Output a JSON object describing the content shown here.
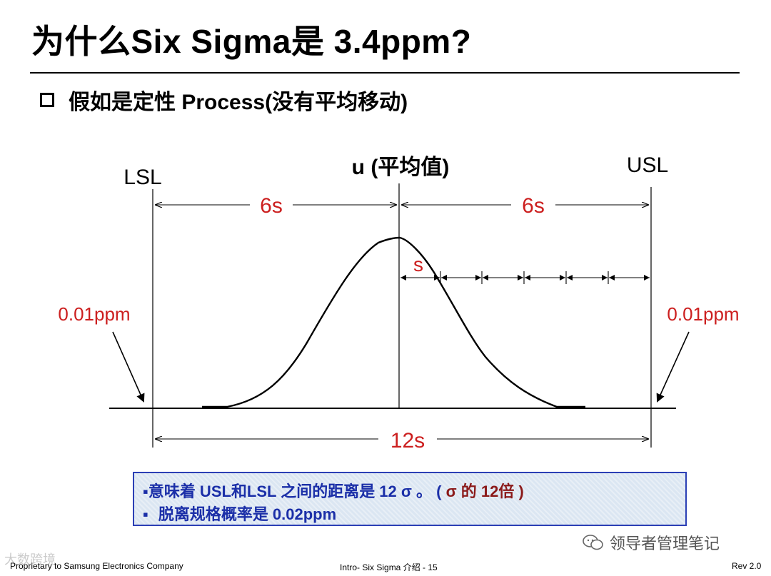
{
  "title": "为什么Six Sigma是 3.4ppm?",
  "subtitle": "假如是定性 Process(没有平均移动)",
  "diagram": {
    "lsl_label": "LSL",
    "usl_label": "USL",
    "mean_label": "u (平均值)",
    "left_span_label": "6s",
    "right_span_label": "6s",
    "sigma_label": "s",
    "total_span_label": "12s",
    "left_tail_label": "0.01ppm",
    "right_tail_label": "0.01ppm",
    "accent_color": "#cc1f1f"
  },
  "info_box": {
    "line1_prefix": "意味着 USL和LSL 之间的距离是 12 σ 。 (",
    "line1_sigma": " σ 的 12倍 )",
    "line2": "脱离规格概率是 0.02ppm"
  },
  "footer": {
    "left": "Proprietary to Samsung Electronics Company",
    "center": "Intro- Six Sigma 介绍 - 15",
    "right": "Rev 2.0"
  },
  "wechat_label": "领导者管理笔记",
  "watermark": "大数跨境"
}
